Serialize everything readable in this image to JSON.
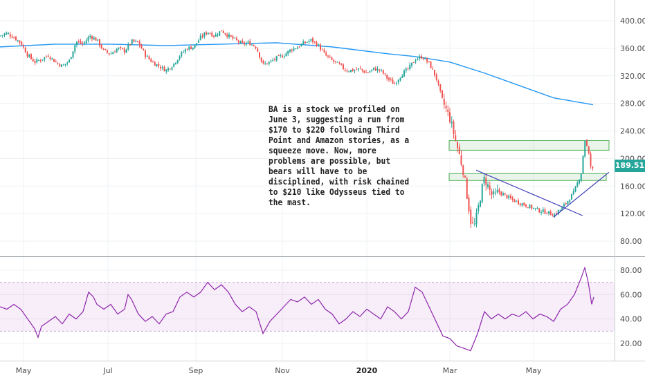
{
  "chart_data": [
    {
      "type": "candlestick",
      "title": "",
      "note": "BA is a stock we profiled on June 3, suggesting a run from $170 to $220 following Third Point and Amazon stories, as a squeeze move. Now, more problems are possible, but bears will have to be disciplined, with risk chained to $210 like Odysseus tied to the mast.",
      "last_price": "189.51",
      "ylim": [
        60,
        420
      ],
      "yticks": [
        "400.00",
        "360.00",
        "320.00",
        "280.00",
        "240.00",
        "200.00",
        "160.00",
        "120.00",
        "80.00"
      ],
      "xticks": [
        "May",
        "Jul",
        "Sep",
        "Nov",
        "2020",
        "Mar",
        "May"
      ],
      "close_path": [
        [
          0,
          378
        ],
        [
          10,
          382
        ],
        [
          20,
          376
        ],
        [
          30,
          368
        ],
        [
          40,
          350
        ],
        [
          50,
          340
        ],
        [
          60,
          344
        ],
        [
          70,
          350
        ],
        [
          80,
          340
        ],
        [
          90,
          334
        ],
        [
          100,
          342
        ],
        [
          110,
          370
        ],
        [
          120,
          366
        ],
        [
          130,
          378
        ],
        [
          140,
          372
        ],
        [
          150,
          356
        ],
        [
          160,
          352
        ],
        [
          170,
          360
        ],
        [
          180,
          356
        ],
        [
          190,
          370
        ],
        [
          200,
          368
        ],
        [
          210,
          350
        ],
        [
          220,
          340
        ],
        [
          230,
          334
        ],
        [
          240,
          328
        ],
        [
          250,
          336
        ],
        [
          260,
          350
        ],
        [
          270,
          360
        ],
        [
          280,
          362
        ],
        [
          290,
          376
        ],
        [
          300,
          384
        ],
        [
          310,
          378
        ],
        [
          320,
          386
        ],
        [
          330,
          378
        ],
        [
          340,
          372
        ],
        [
          350,
          366
        ],
        [
          360,
          368
        ],
        [
          370,
          362
        ],
        [
          380,
          336
        ],
        [
          390,
          340
        ],
        [
          400,
          346
        ],
        [
          410,
          350
        ],
        [
          420,
          358
        ],
        [
          430,
          362
        ],
        [
          440,
          368
        ],
        [
          450,
          372
        ],
        [
          460,
          364
        ],
        [
          470,
          350
        ],
        [
          480,
          342
        ],
        [
          490,
          336
        ],
        [
          500,
          328
        ],
        [
          510,
          328
        ],
        [
          520,
          330
        ],
        [
          530,
          324
        ],
        [
          540,
          330
        ],
        [
          550,
          328
        ],
        [
          560,
          316
        ],
        [
          570,
          308
        ],
        [
          580,
          322
        ],
        [
          590,
          330
        ],
        [
          600,
          344
        ],
        [
          610,
          348
        ],
        [
          620,
          338
        ],
        [
          630,
          318
        ],
        [
          640,
          282
        ],
        [
          650,
          258
        ],
        [
          660,
          220
        ],
        [
          670,
          180
        ],
        [
          675,
          145
        ],
        [
          680,
          110
        ],
        [
          685,
          100
        ],
        [
          690,
          122
        ],
        [
          695,
          150
        ],
        [
          700,
          172
        ],
        [
          705,
          160
        ],
        [
          710,
          148
        ],
        [
          715,
          145
        ],
        [
          720,
          152
        ],
        [
          730,
          146
        ],
        [
          740,
          140
        ],
        [
          750,
          136
        ],
        [
          760,
          132
        ],
        [
          770,
          128
        ],
        [
          780,
          124
        ],
        [
          790,
          122
        ],
        [
          800,
          118
        ],
        [
          810,
          126
        ],
        [
          820,
          138
        ],
        [
          830,
          152
        ],
        [
          840,
          180
        ],
        [
          845,
          228
        ],
        [
          850,
          210
        ],
        [
          855,
          180
        ],
        [
          858,
          189.51
        ]
      ],
      "series": [
        {
          "name": "",
          "type": "line",
          "color": "#2196f3",
          "points": [
            [
              0,
              362
            ],
            [
              80,
              366
            ],
            [
              160,
              366
            ],
            [
              240,
              364
            ],
            [
              320,
              366
            ],
            [
              400,
              368
            ],
            [
              480,
              362
            ],
            [
              560,
              352
            ],
            [
              600,
              348
            ],
            [
              650,
              340
            ],
            [
              700,
              324
            ],
            [
              750,
              306
            ],
            [
              800,
              288
            ],
            [
              857,
              278
            ]
          ]
        }
      ],
      "zones": [
        {
          "from": 212,
          "to": 226,
          "x_from": 649,
          "x_to": 880,
          "color": "#4caf50"
        },
        {
          "from": 168,
          "to": 178,
          "x_from": 649,
          "x_to": 876,
          "color": "#4caf50"
        }
      ],
      "trendlines": [
        {
          "color": "#3f3fb8",
          "points": [
            [
              688,
              183
            ],
            [
              842,
              117
            ]
          ]
        },
        {
          "color": "#3f3fb8",
          "points": [
            [
              800,
              115
            ],
            [
              880,
              180
            ]
          ]
        }
      ]
    },
    {
      "type": "line",
      "title": "",
      "ylim": [
        10,
        92
      ],
      "yticks": [
        "80.00",
        "60.00",
        "40.00",
        "20.00"
      ],
      "band": [
        30,
        70
      ],
      "series": [
        {
          "name": "",
          "color": "#8e24aa",
          "points": [
            [
              0,
              50
            ],
            [
              10,
              48
            ],
            [
              20,
              52
            ],
            [
              30,
              48
            ],
            [
              40,
              40
            ],
            [
              50,
              32
            ],
            [
              55,
              25
            ],
            [
              60,
              34
            ],
            [
              70,
              38
            ],
            [
              80,
              42
            ],
            [
              90,
              36
            ],
            [
              100,
              44
            ],
            [
              110,
              40
            ],
            [
              120,
              46
            ],
            [
              128,
              62
            ],
            [
              135,
              58
            ],
            [
              140,
              52
            ],
            [
              150,
              48
            ],
            [
              160,
              52
            ],
            [
              170,
              44
            ],
            [
              180,
              48
            ],
            [
              185,
              60
            ],
            [
              190,
              56
            ],
            [
              200,
              44
            ],
            [
              210,
              38
            ],
            [
              220,
              42
            ],
            [
              230,
              36
            ],
            [
              240,
              44
            ],
            [
              250,
              46
            ],
            [
              260,
              58
            ],
            [
              270,
              62
            ],
            [
              280,
              58
            ],
            [
              290,
              62
            ],
            [
              300,
              70
            ],
            [
              310,
              64
            ],
            [
              320,
              68
            ],
            [
              330,
              62
            ],
            [
              340,
              52
            ],
            [
              350,
              46
            ],
            [
              360,
              50
            ],
            [
              370,
              46
            ],
            [
              380,
              28
            ],
            [
              390,
              38
            ],
            [
              400,
              44
            ],
            [
              410,
              50
            ],
            [
              420,
              56
            ],
            [
              430,
              54
            ],
            [
              440,
              58
            ],
            [
              450,
              52
            ],
            [
              460,
              56
            ],
            [
              470,
              48
            ],
            [
              480,
              44
            ],
            [
              490,
              36
            ],
            [
              500,
              40
            ],
            [
              510,
              46
            ],
            [
              520,
              42
            ],
            [
              530,
              48
            ],
            [
              540,
              44
            ],
            [
              550,
              40
            ],
            [
              560,
              50
            ],
            [
              570,
              46
            ],
            [
              580,
              40
            ],
            [
              590,
              46
            ],
            [
              600,
              66
            ],
            [
              610,
              62
            ],
            [
              620,
              50
            ],
            [
              630,
              38
            ],
            [
              640,
              26
            ],
            [
              650,
              24
            ],
            [
              660,
              18
            ],
            [
              670,
              16
            ],
            [
              680,
              14
            ],
            [
              690,
              28
            ],
            [
              700,
              46
            ],
            [
              710,
              40
            ],
            [
              720,
              44
            ],
            [
              730,
              40
            ],
            [
              740,
              44
            ],
            [
              750,
              42
            ],
            [
              760,
              46
            ],
            [
              770,
              40
            ],
            [
              780,
              44
            ],
            [
              790,
              42
            ],
            [
              800,
              38
            ],
            [
              810,
              48
            ],
            [
              820,
              52
            ],
            [
              830,
              60
            ],
            [
              840,
              74
            ],
            [
              845,
              82
            ],
            [
              850,
              70
            ],
            [
              855,
              52
            ],
            [
              858,
              58
            ]
          ]
        }
      ]
    }
  ]
}
